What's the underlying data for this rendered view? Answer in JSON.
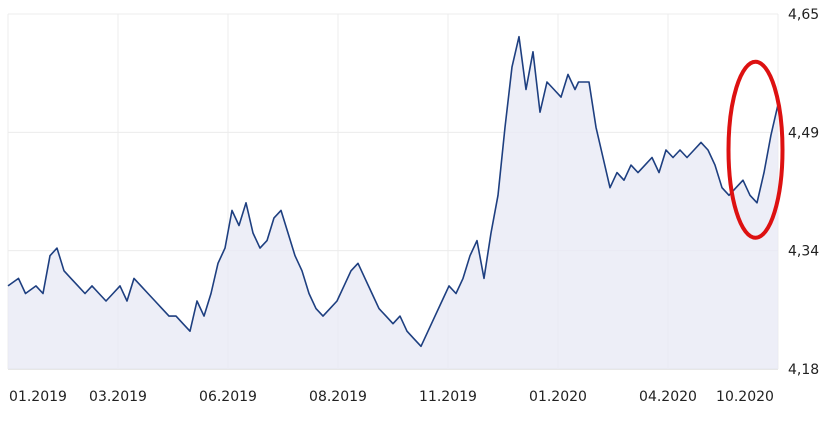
{
  "chart_data": {
    "type": "area",
    "x_ticks": [
      "01.2019",
      "03.2019",
      "06.2019",
      "08.2019",
      "11.2019",
      "01.2020",
      "04.2020",
      "10.2020"
    ],
    "y_ticks": [
      "4,18",
      "4,34",
      "4,49",
      "4,65"
    ],
    "ylim": [
      4.18,
      4.65
    ],
    "xlim": [
      0,
      22
    ],
    "grid": true,
    "y_axis_position": "right",
    "line_color": "#1e3f80",
    "fill_color": "#e8eaf5",
    "annotation": {
      "type": "ellipse",
      "color": "#dd1111",
      "around": "last values"
    },
    "series": [
      {
        "x": [
          0,
          0.3,
          0.5,
          0.8,
          1.0,
          1.2,
          1.4,
          1.6,
          1.8,
          2.0,
          2.2,
          2.4,
          2.6,
          2.8,
          3.0,
          3.2,
          3.4,
          3.6,
          3.8,
          4.0,
          4.2,
          4.4,
          4.6,
          4.8,
          5.0,
          5.2,
          5.4,
          5.6,
          5.8,
          6.0,
          6.2,
          6.4,
          6.6,
          6.8,
          7.0,
          7.2,
          7.4,
          7.6,
          7.8,
          8.0,
          8.2,
          8.4,
          8.6,
          8.8,
          9.0,
          9.2,
          9.4,
          9.6,
          9.8,
          10.0,
          10.2,
          10.4,
          10.6,
          10.8,
          11.0,
          11.2,
          11.4,
          11.6,
          11.8,
          12.0,
          12.2,
          12.4,
          12.6,
          12.8,
          13.0,
          13.2,
          13.4,
          13.6,
          13.8,
          14.0,
          14.2,
          14.4,
          14.6,
          14.8,
          15.0,
          15.2,
          15.4,
          15.6,
          15.8,
          16.0,
          16.2,
          16.3,
          16.4,
          16.6,
          16.8,
          17.0,
          17.2,
          17.4,
          17.6,
          17.8,
          18.0,
          18.2,
          18.4,
          18.6,
          18.8,
          19.0,
          19.2,
          19.4,
          19.6,
          19.8,
          20.0,
          20.2,
          20.4,
          20.6,
          20.8,
          21.0,
          21.2,
          21.4,
          21.6,
          21.8,
          22.0
        ],
        "values": [
          4.29,
          4.3,
          4.28,
          4.29,
          4.28,
          4.33,
          4.34,
          4.31,
          4.3,
          4.29,
          4.28,
          4.29,
          4.28,
          4.27,
          4.28,
          4.29,
          4.27,
          4.3,
          4.29,
          4.28,
          4.27,
          4.26,
          4.25,
          4.25,
          4.24,
          4.23,
          4.27,
          4.25,
          4.28,
          4.32,
          4.34,
          4.39,
          4.37,
          4.4,
          4.36,
          4.34,
          4.35,
          4.38,
          4.39,
          4.36,
          4.33,
          4.31,
          4.28,
          4.26,
          4.25,
          4.26,
          4.27,
          4.29,
          4.31,
          4.32,
          4.3,
          4.28,
          4.26,
          4.25,
          4.24,
          4.25,
          4.23,
          4.22,
          4.21,
          4.23,
          4.25,
          4.27,
          4.29,
          4.28,
          4.3,
          4.33,
          4.35,
          4.3,
          4.36,
          4.41,
          4.5,
          4.58,
          4.62,
          4.55,
          4.6,
          4.52,
          4.56,
          4.55,
          4.54,
          4.57,
          4.55,
          4.56,
          4.56,
          4.56,
          4.5,
          4.46,
          4.42,
          4.44,
          4.43,
          4.45,
          4.44,
          4.45,
          4.46,
          4.44,
          4.47,
          4.46,
          4.47,
          4.46,
          4.47,
          4.48,
          4.47,
          4.45,
          4.42,
          4.41,
          4.42,
          4.43,
          4.41,
          4.4,
          4.44,
          4.49,
          4.53
        ]
      }
    ]
  }
}
